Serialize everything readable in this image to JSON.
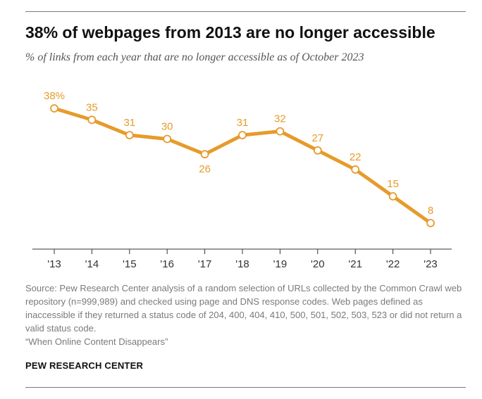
{
  "title": "38% of webpages from 2013 are no longer accessible",
  "subtitle": "% of links from each year that are no longer accessible as of October 2023",
  "chart_data": {
    "type": "line",
    "categories": [
      "'13",
      "'14",
      "'15",
      "'16",
      "'17",
      "'18",
      "'19",
      "'20",
      "'21",
      "'22",
      "'23"
    ],
    "values": [
      38,
      35,
      31,
      30,
      26,
      31,
      32,
      27,
      22,
      15,
      8
    ],
    "data_labels": [
      "38%",
      "35",
      "31",
      "30",
      "26",
      "31",
      "32",
      "27",
      "22",
      "15",
      "8"
    ],
    "ylim": [
      0,
      40
    ],
    "grid": false,
    "color": "#E69B2B"
  },
  "source": {
    "line1": "Source: Pew Research Center analysis of a random selection of URLs collected by the Common Crawl web repository (n=999,989) and checked using page and DNS response codes. Web pages defined as inaccessible if they returned a status code of 204, 400, 404, 410, 500, 501, 502, 503, 523 or did not return a valid status code.",
    "line2": "“When Online Content Disappears”"
  },
  "brand": "PEW RESEARCH CENTER"
}
